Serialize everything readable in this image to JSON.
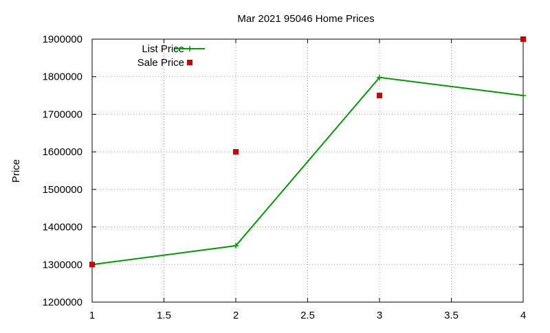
{
  "chart_data": {
    "type": "line",
    "title": "Mar 2021 95046 Home Prices",
    "xlabel": "",
    "ylabel": "Price",
    "xlim": [
      1,
      4
    ],
    "ylim": [
      1200000,
      1900000
    ],
    "x_ticks": [
      "1",
      "1.5",
      "2",
      "2.5",
      "3",
      "3.5",
      "4"
    ],
    "y_ticks": [
      "1200000",
      "1300000",
      "1400000",
      "1500000",
      "1600000",
      "1700000",
      "1800000",
      "1900000"
    ],
    "grid": true,
    "legend_position": "top-left",
    "series": [
      {
        "name": "List Price",
        "style": "line-plus",
        "color": "#009900",
        "x": [
          1,
          2,
          3,
          4
        ],
        "y": [
          1300000,
          1350000,
          1798000,
          1750000
        ]
      },
      {
        "name": "Sale Price",
        "style": "points-square",
        "color": "#cc0000",
        "x": [
          1,
          2,
          3,
          4
        ],
        "y": [
          1300000,
          1600000,
          1750000,
          1900000
        ]
      }
    ]
  }
}
